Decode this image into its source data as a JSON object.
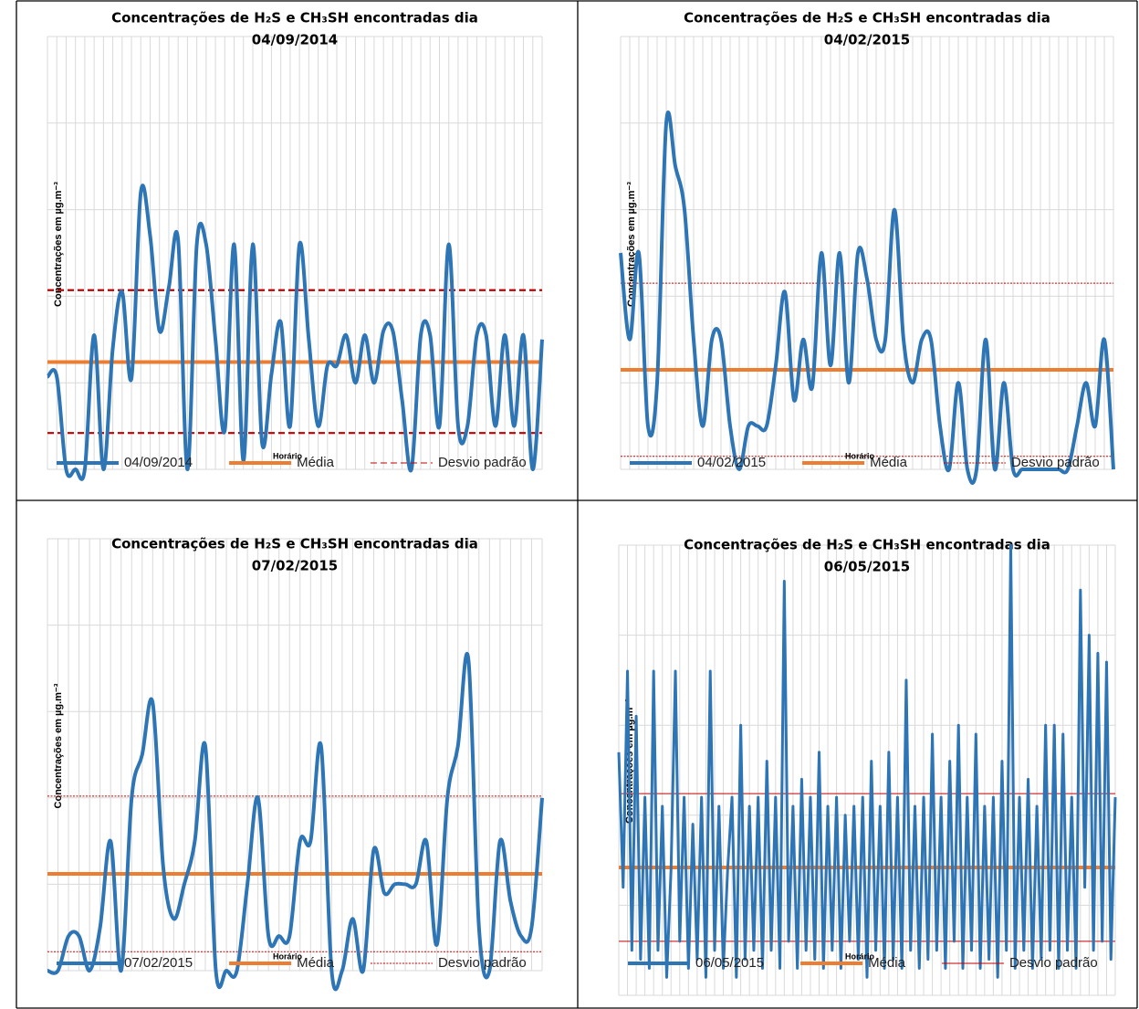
{
  "chart_data": [
    {
      "type": "line",
      "smooth": true,
      "title": [
        "Concentrações de H₂S e CH₃SH encontradas dia",
        "04/09/2014"
      ],
      "x_label": "Horário",
      "y_label": "Concentrações em µg.m⁻³",
      "ylim": [
        0,
        5
      ],
      "yticks": [
        0,
        1,
        2,
        3,
        4,
        5
      ],
      "grid": true,
      "series": [
        {
          "name": "04/09/2014",
          "color": "#2e75b6",
          "values": [
            1.07,
            1.07,
            0,
            0,
            0,
            1.55,
            0,
            1.4,
            2.05,
            1.05,
            3.2,
            2.7,
            1.6,
            2.1,
            2.65,
            0,
            2.6,
            2.6,
            1.5,
            0.45,
            2.6,
            0.1,
            2.6,
            0.3,
            1.1,
            1.7,
            0.5,
            2.6,
            1.5,
            0.5,
            1.2,
            1.2,
            1.55,
            1.0,
            1.55,
            1.0,
            1.6,
            1.6,
            0.8,
            0,
            1.55,
            1.55,
            0.5,
            2.6,
            0.5,
            0.5,
            1.55,
            1.55,
            0.5,
            1.55,
            0.5,
            1.55,
            0,
            1.5
          ]
        },
        {
          "name": "Média",
          "color": "#ed7d31",
          "y": [
            1.24
          ]
        },
        {
          "name": "Desvio padrão",
          "color": "#c00000",
          "y": [
            2.07,
            0.42
          ],
          "line_style": "dashed"
        }
      ]
    },
    {
      "type": "line",
      "smooth": true,
      "title": [
        "Concentrações de H₂S e CH₃SH encontradas dia",
        "04/02/2015"
      ],
      "x_label": "Horário",
      "y_label": "Concentrações em µg.m⁻³",
      "ylim": [
        0,
        5
      ],
      "yticks": [
        0,
        1,
        2,
        3,
        4,
        5
      ],
      "grid": true,
      "series": [
        {
          "name": "04/02/2015",
          "color": "#2e75b6",
          "values": [
            2.5,
            1.5,
            2.5,
            0.5,
            1.0,
            4.0,
            3.5,
            3.0,
            1.5,
            0.5,
            1.5,
            1.5,
            0.5,
            0,
            0.5,
            0.5,
            0.5,
            1.2,
            2.05,
            0.8,
            1.5,
            0.95,
            2.5,
            1.2,
            2.5,
            1.0,
            2.5,
            2.2,
            1.5,
            1.5,
            3.0,
            1.5,
            1.0,
            1.5,
            1.5,
            0.5,
            0,
            1.0,
            0,
            0,
            1.5,
            0,
            1.0,
            0,
            0,
            0,
            0,
            0,
            0,
            0,
            0.5,
            1.0,
            0.5,
            1.5,
            0
          ]
        },
        {
          "name": "Média",
          "color": "#ed7d31",
          "y": [
            1.15
          ]
        },
        {
          "name": "Desvio padrão",
          "color": "#c00000",
          "y": [
            2.15,
            0.15
          ],
          "line_style": "dotted"
        }
      ]
    },
    {
      "type": "line",
      "smooth": true,
      "title": [
        "Concentrações de H₂S e CH₃SH encontradas dia",
        "07/02/2015"
      ],
      "x_label": "Horário",
      "y_label": "Concentrações em µg.m⁻³",
      "ylim": [
        0,
        5
      ],
      "yticks": [
        0,
        1,
        2,
        3,
        4,
        5
      ],
      "grid": true,
      "series": [
        {
          "name": "07/02/2015",
          "color": "#2e75b6",
          "values": [
            0,
            0,
            0.4,
            0.4,
            0,
            0.5,
            1.5,
            0,
            2.0,
            2.5,
            3.1,
            1.2,
            0.6,
            1.0,
            1.5,
            2.6,
            0,
            0,
            0,
            1.0,
            2.0,
            0.4,
            0.4,
            0.4,
            1.5,
            1.5,
            2.6,
            0,
            0,
            0.6,
            0,
            1.4,
            0.9,
            1.0,
            1.0,
            1.0,
            1.5,
            0.3,
            2.0,
            2.6,
            3.6,
            0.5,
            0,
            1.5,
            0.8,
            0.4,
            0.5,
            2.0
          ]
        },
        {
          "name": "Média",
          "color": "#ed7d31",
          "y": [
            1.12
          ]
        },
        {
          "name": "Desvio padrão",
          "color": "#c00000",
          "y": [
            2.02,
            0.22
          ],
          "line_style": "dotted"
        }
      ]
    },
    {
      "type": "line",
      "smooth": false,
      "title": [
        "Concentrações  de H₂S e CH₃SH encontradas dia",
        "06/05/2015"
      ],
      "x_label": "Horário",
      "y_label": "Concentrações em µg.m⁻³",
      "ylim": [
        0,
        5
      ],
      "yticks": [
        0,
        1,
        2,
        3,
        4,
        5
      ],
      "grid": true,
      "series": [
        {
          "name": "06/05/2015",
          "color": "#2e75b6",
          "values": [
            2.7,
            1.2,
            3.6,
            0.5,
            3.1,
            0.4,
            2.2,
            0.3,
            3.6,
            0.5,
            2.1,
            0.2,
            1.4,
            3.6,
            0.6,
            2.2,
            0.3,
            1.9,
            0.4,
            2.2,
            0.2,
            3.6,
            0.5,
            2.1,
            0.3,
            1.4,
            2.2,
            0.2,
            3.0,
            0.4,
            2.1,
            0.5,
            2.2,
            0.3,
            2.6,
            0.5,
            2.2,
            0.3,
            4.6,
            0.6,
            2.1,
            0.3,
            2.4,
            0.5,
            2.2,
            0.4,
            2.7,
            0.3,
            2.1,
            0.5,
            2.2,
            0.3,
            2.0,
            0.6,
            2.1,
            0.4,
            2.2,
            0.2,
            2.6,
            0.5,
            2.1,
            0.3,
            2.7,
            0.4,
            2.2,
            0.3,
            3.5,
            0.5,
            2.1,
            0.3,
            2.2,
            0.4,
            2.9,
            0.5,
            2.2,
            0.3,
            2.6,
            0.6,
            3.0,
            0.3,
            2.2,
            0.5,
            2.9,
            0.3,
            2.1,
            0.4,
            2.2,
            0.2,
            2.6,
            0.5,
            5.0,
            0.3,
            2.2,
            0.5,
            2.4,
            0.3,
            2.1,
            0.4,
            3.0,
            0.5,
            3.0,
            0.3,
            2.9,
            0.5,
            2.2,
            0.3,
            4.5,
            1.2,
            4.0,
            0.5,
            3.8,
            0.6,
            3.7,
            0.4,
            2.2
          ]
        },
        {
          "name": "Média",
          "color": "#ed7d31",
          "y": [
            1.42
          ]
        },
        {
          "name": "Desvio padrão",
          "color": "#c00000",
          "y": [
            2.24,
            0.6
          ],
          "line_style": "solid"
        }
      ]
    }
  ]
}
